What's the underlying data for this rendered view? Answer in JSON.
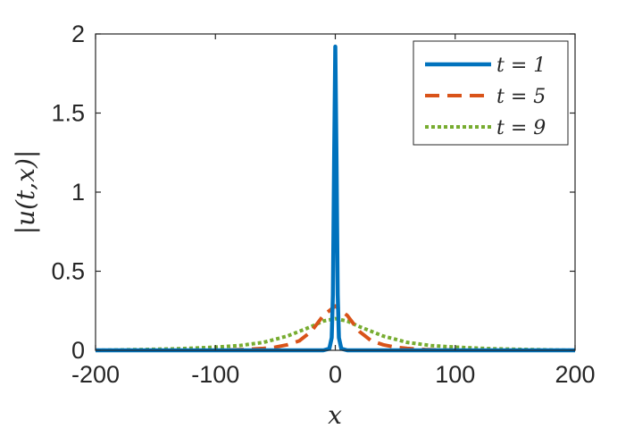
{
  "chart_data": {
    "type": "line",
    "title": "",
    "xlabel": "x",
    "ylabel": "|u(t,x)|",
    "xlim": [
      -200,
      200
    ],
    "ylim": [
      0,
      2
    ],
    "xticks": [
      -200,
      -100,
      0,
      100,
      200
    ],
    "xtick_labels": [
      "-200",
      "-100",
      "0",
      "100",
      "200"
    ],
    "yticks": [
      0,
      0.5,
      1,
      1.5,
      2
    ],
    "ytick_labels": [
      "0",
      "0.5",
      "1",
      "1.5",
      "2"
    ],
    "grid": false,
    "legend_position": "top-right",
    "series": [
      {
        "name": "t = 1",
        "color": "#0072BD",
        "style": "solid",
        "x": [
          -200,
          -150,
          -100,
          -50,
          -10,
          -5,
          -3,
          -2,
          -1,
          0,
          1,
          2,
          3,
          5,
          10,
          50,
          100,
          150,
          200
        ],
        "y": [
          0,
          0,
          0,
          0,
          0,
          0.01,
          0.08,
          0.35,
          1.2,
          1.92,
          1.2,
          0.35,
          0.08,
          0.01,
          0,
          0,
          0,
          0,
          0
        ]
      },
      {
        "name": "t = 5",
        "color": "#D95319",
        "style": "dashed",
        "x": [
          -200,
          -150,
          -100,
          -75,
          -60,
          -50,
          -40,
          -30,
          -20,
          -10,
          0,
          10,
          20,
          30,
          40,
          50,
          60,
          75,
          100,
          150,
          200
        ],
        "y": [
          0,
          0,
          0,
          0.005,
          0.012,
          0.02,
          0.035,
          0.06,
          0.12,
          0.22,
          0.28,
          0.22,
          0.12,
          0.06,
          0.035,
          0.02,
          0.012,
          0.005,
          0,
          0,
          0
        ]
      },
      {
        "name": "t = 9",
        "color": "#77AC30",
        "style": "dotted",
        "x": [
          -200,
          -160,
          -130,
          -100,
          -80,
          -60,
          -40,
          -20,
          -10,
          0,
          10,
          20,
          40,
          60,
          80,
          100,
          130,
          160,
          200
        ],
        "y": [
          0,
          0.005,
          0.01,
          0.02,
          0.03,
          0.05,
          0.09,
          0.15,
          0.185,
          0.2,
          0.185,
          0.15,
          0.09,
          0.05,
          0.03,
          0.02,
          0.01,
          0.005,
          0
        ]
      }
    ]
  }
}
